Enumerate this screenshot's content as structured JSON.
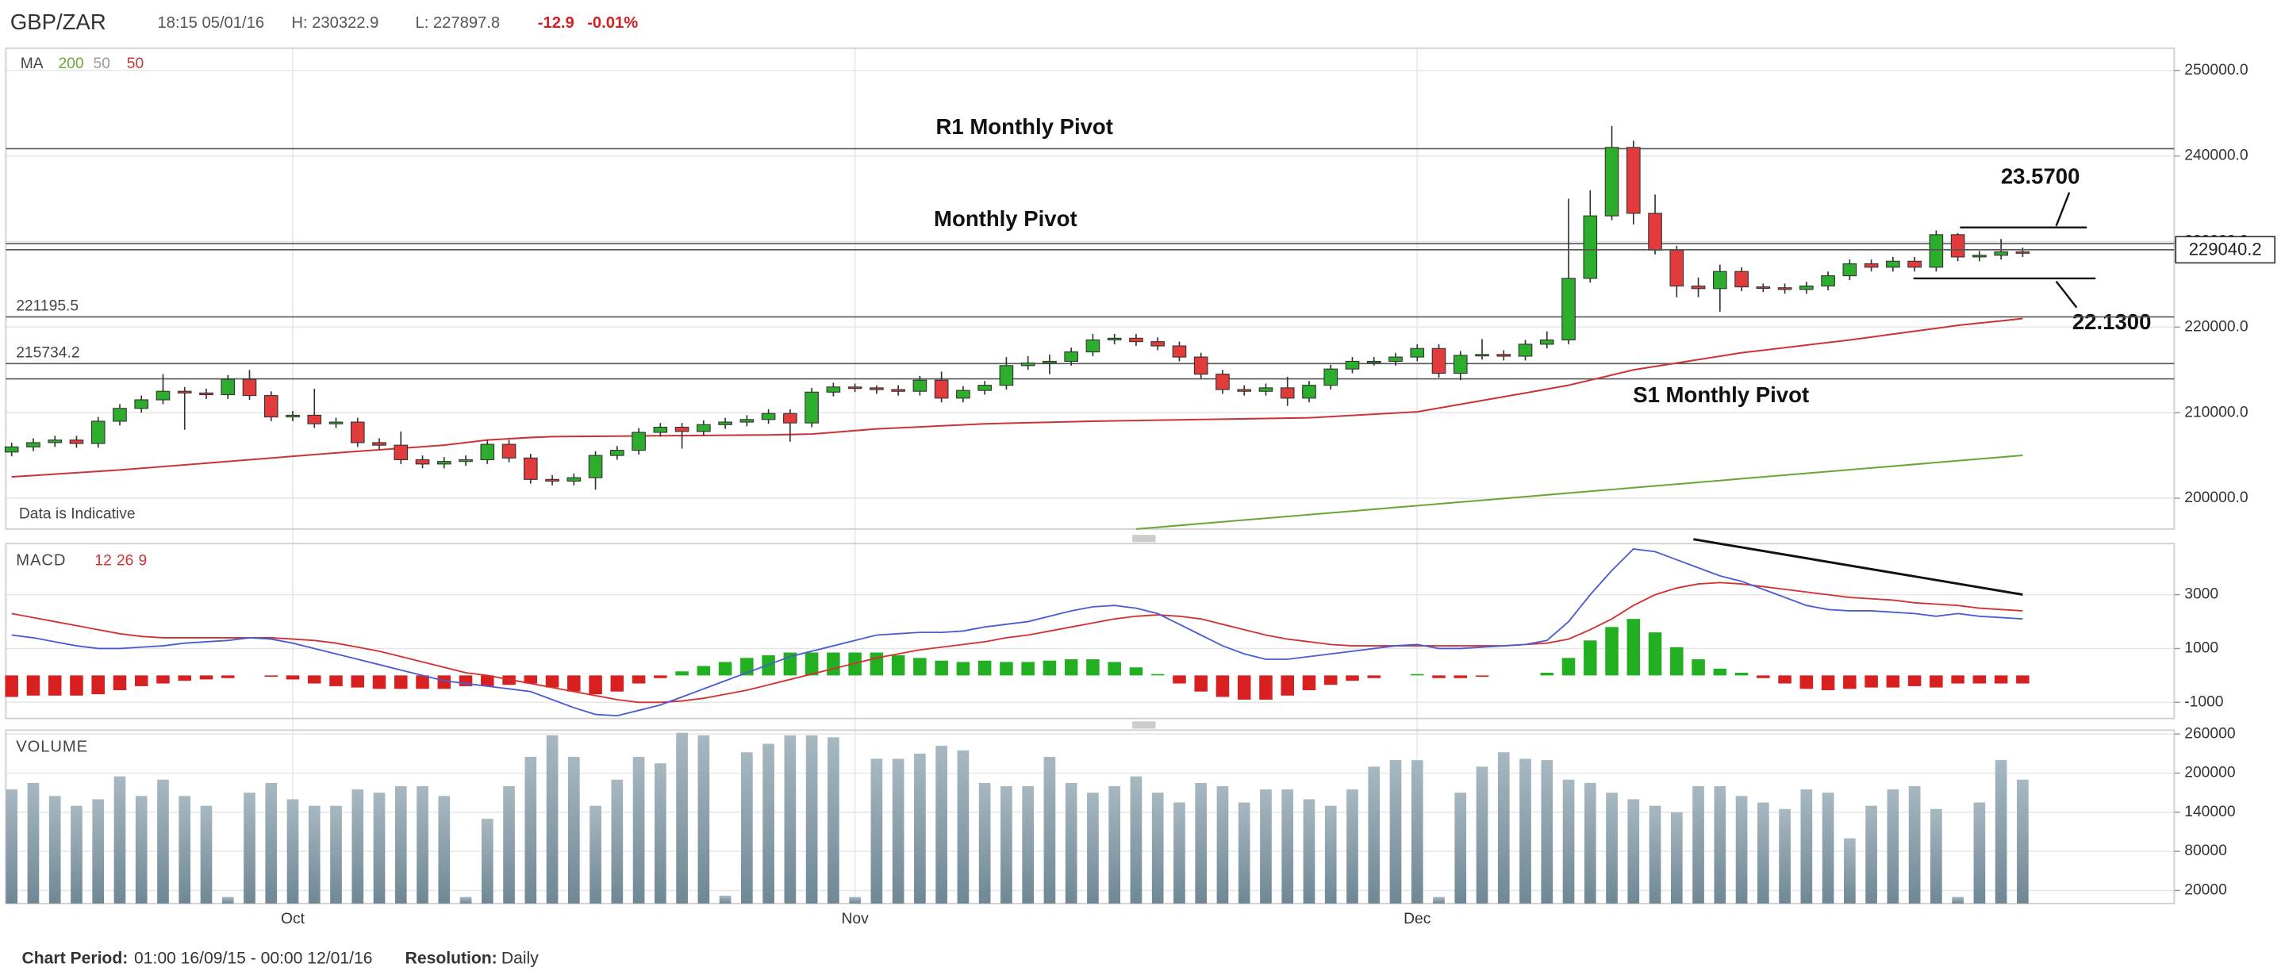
{
  "header": {
    "symbol": "GBP/ZAR",
    "time": "18:15 05/01/16",
    "high": "H: 230322.9",
    "low": "L: 227897.8",
    "change": "-12.9",
    "change_pct": "-0.01%"
  },
  "footer": {
    "period_label": "Chart Period:",
    "period": "01:00 16/09/15 - 00:00 12/01/16",
    "resolution_label": "Resolution:",
    "resolution": "Daily"
  },
  "chart_data": [
    {
      "type": "candlestick",
      "legend_title": "MA",
      "legend_extra": {
        "name": "50",
        "color": "#9a9a9a"
      },
      "note": "Data is Indicative",
      "categories": [
        null,
        null,
        null,
        null,
        null,
        null,
        null,
        null,
        null,
        null,
        null,
        null,
        null,
        "Oct",
        null,
        null,
        null,
        null,
        null,
        null,
        null,
        null,
        null,
        null,
        null,
        null,
        null,
        null,
        null,
        null,
        null,
        null,
        null,
        null,
        null,
        null,
        null,
        null,
        null,
        "Nov",
        null,
        null,
        null,
        null,
        null,
        null,
        null,
        null,
        null,
        null,
        null,
        null,
        null,
        null,
        null,
        null,
        null,
        null,
        null,
        null,
        null,
        null,
        null,
        null,
        null,
        "Dec",
        null,
        null,
        null,
        null,
        null,
        null,
        null,
        null,
        null,
        null,
        null,
        null,
        null,
        null,
        null,
        null,
        null,
        null,
        null,
        null,
        null,
        null,
        null,
        null,
        null,
        null,
        null,
        null
      ],
      "open": [
        205400,
        206000,
        206500,
        206800,
        206400,
        209000,
        210500,
        211500,
        212500,
        212300,
        212100,
        213900,
        212000,
        209500,
        209700,
        208700,
        208900,
        206500,
        206200,
        204500,
        204000,
        204300,
        204500,
        206300,
        204700,
        202200,
        202000,
        202400,
        205000,
        205600,
        207700,
        208300,
        207800,
        208600,
        208900,
        209200,
        209900,
        208800,
        212400,
        213000,
        212900,
        212700,
        212500,
        213800,
        211700,
        212600,
        213200,
        215500,
        215800,
        216000,
        217100,
        218500,
        218700,
        218300,
        217800,
        216500,
        214500,
        212700,
        212500,
        212900,
        211700,
        213200,
        215100,
        216000,
        216000,
        216500,
        217500,
        214600,
        216700,
        216800,
        216600,
        218000,
        218500,
        225700,
        233000,
        241000,
        233300,
        229000,
        224800,
        224500,
        226500,
        224700,
        224600,
        224400,
        224800,
        226000,
        227400,
        227000,
        227700,
        227000,
        230800,
        228200,
        228400,
        228800
      ],
      "high": [
        206500,
        207000,
        207300,
        207300,
        209500,
        211000,
        212000,
        214500,
        213000,
        212800,
        214400,
        215000,
        212500,
        210200,
        212800,
        209400,
        209400,
        207000,
        207800,
        205000,
        204800,
        205000,
        206800,
        206800,
        205200,
        202700,
        202900,
        205500,
        206100,
        208200,
        208800,
        208800,
        209100,
        209400,
        209700,
        210400,
        210400,
        212900,
        213500,
        213400,
        213200,
        213200,
        214300,
        214800,
        213100,
        213700,
        216500,
        216600,
        216800,
        217600,
        219200,
        219200,
        219200,
        218800,
        218300,
        217000,
        215000,
        213200,
        213400,
        214200,
        213700,
        215600,
        216500,
        216500,
        217000,
        218000,
        218000,
        217200,
        218600,
        217300,
        218500,
        219500,
        235000,
        236000,
        243500,
        241800,
        235500,
        229500,
        225800,
        227300,
        227000,
        225100,
        225100,
        225300,
        226500,
        227900,
        227900,
        228200,
        228200,
        231300,
        231000,
        228900,
        230300,
        229300
      ],
      "low": [
        204900,
        205500,
        206000,
        205900,
        205900,
        208500,
        210000,
        211000,
        208000,
        211600,
        211600,
        211500,
        209000,
        209000,
        208200,
        208200,
        206000,
        205700,
        204000,
        203500,
        203500,
        203800,
        204000,
        204200,
        201700,
        201500,
        201500,
        201000,
        204500,
        205100,
        207200,
        205800,
        207300,
        208100,
        208400,
        208700,
        206600,
        208300,
        211900,
        212400,
        212200,
        212000,
        212000,
        211200,
        211200,
        212100,
        212700,
        215000,
        214500,
        215500,
        216600,
        218000,
        217800,
        217300,
        216000,
        214000,
        212200,
        212000,
        212000,
        210800,
        211200,
        212700,
        214600,
        215500,
        215500,
        216000,
        214100,
        213800,
        216200,
        216100,
        216100,
        217500,
        218000,
        225200,
        232500,
        232000,
        228500,
        223500,
        223500,
        221800,
        224200,
        224100,
        223900,
        223900,
        224300,
        225500,
        226500,
        226500,
        226500,
        226500,
        227700,
        227700,
        227900,
        228200
      ],
      "close": [
        206000,
        206500,
        206800,
        206400,
        209000,
        210500,
        211500,
        212500,
        212300,
        212100,
        213900,
        212000,
        209500,
        209700,
        208700,
        208900,
        206500,
        206200,
        204500,
        204000,
        204300,
        204500,
        206300,
        204700,
        202200,
        202000,
        202400,
        205000,
        205600,
        207700,
        208300,
        207800,
        208600,
        208900,
        209200,
        209900,
        208800,
        212400,
        213000,
        212900,
        212700,
        212500,
        213800,
        211700,
        212600,
        213200,
        215500,
        215800,
        216000,
        217100,
        218500,
        218700,
        218300,
        217800,
        216500,
        214500,
        212700,
        212500,
        212900,
        211700,
        213200,
        215100,
        216000,
        216000,
        216500,
        217500,
        214600,
        216700,
        216800,
        216600,
        218000,
        218500,
        225700,
        233000,
        241000,
        233300,
        229000,
        224800,
        224500,
        226500,
        224700,
        224600,
        224400,
        224800,
        226000,
        227400,
        227000,
        227700,
        227000,
        230800,
        228200,
        228400,
        228800,
        228700
      ],
      "up_color": "#2cad2c",
      "down_color": "#e23b3b",
      "series": [
        {
          "name": "200",
          "color": "#6aa536",
          "values": [
            null,
            null,
            null,
            null,
            null,
            null,
            null,
            null,
            null,
            null,
            null,
            null,
            null,
            null,
            null,
            null,
            null,
            null,
            null,
            null,
            null,
            null,
            null,
            null,
            null,
            null,
            null,
            null,
            null,
            null,
            null,
            null,
            null,
            null,
            null,
            null,
            null,
            null,
            null,
            null,
            null,
            null,
            null,
            null,
            null,
            null,
            null,
            null,
            null,
            null,
            null,
            null,
            196400,
            196610,
            196820,
            197030,
            197240,
            197450,
            197660,
            197870,
            198080,
            198290,
            198500,
            198710,
            198920,
            199130,
            199340,
            199550,
            199760,
            199970,
            200180,
            200390,
            200600,
            200810,
            201020,
            201230,
            201440,
            201650,
            201860,
            202070,
            202280,
            202490,
            202700,
            202910,
            203120,
            203330,
            203540,
            203750,
            203960,
            204170,
            204380,
            204590,
            204800,
            205010
          ]
        },
        {
          "name": "50",
          "color": "#cc3333",
          "values": [
            202500,
            202660,
            202820,
            202980,
            203140,
            203300,
            203500,
            203700,
            203900,
            204100,
            204300,
            204500,
            204700,
            204900,
            205100,
            205300,
            205480,
            205660,
            205840,
            206020,
            206200,
            206500,
            206800,
            206950,
            207100,
            207200,
            207220,
            207240,
            207260,
            207280,
            207300,
            207320,
            207340,
            207360,
            207380,
            207400,
            207450,
            207500,
            207700,
            207900,
            208100,
            208220,
            208340,
            208460,
            208580,
            208700,
            208760,
            208820,
            208880,
            208940,
            209000,
            209040,
            209080,
            209120,
            209160,
            209200,
            209240,
            209280,
            209320,
            209360,
            209400,
            209540,
            209680,
            209820,
            209960,
            210100,
            210540,
            210980,
            211420,
            211860,
            212300,
            212750,
            213200,
            213800,
            214400,
            215000,
            215400,
            215800,
            216200,
            216600,
            217000,
            217300,
            217600,
            217900,
            218200,
            218500,
            218840,
            219180,
            219520,
            219860,
            220200,
            220470,
            220730,
            221000
          ]
        }
      ],
      "levels": [
        {
          "label": "R1 Monthly Pivot",
          "value": 240850
        },
        {
          "label": "Monthly Pivot",
          "value": 229760
        },
        {
          "label": "S1 Monthly Pivot",
          "value": 213950
        }
      ],
      "price_lines": [
        221195.5,
        215734.2
      ],
      "last_price": 229040.2,
      "annotations": [
        "23.5700",
        "22.1300"
      ],
      "ylim": [
        196400,
        252600
      ],
      "yticks": [
        {
          "value": 200000,
          "label": "200000.0"
        },
        {
          "value": 210000,
          "label": "210000.0"
        },
        {
          "value": 220000,
          "label": "220000.0"
        },
        {
          "value": 230000,
          "label": "230000.0"
        },
        {
          "value": 240000,
          "label": "240000.0"
        },
        {
          "value": 250000,
          "label": "250000.0"
        }
      ],
      "grid": true
    },
    {
      "type": "macd",
      "title": "MACD",
      "params": [
        12,
        26,
        9
      ],
      "macd": [
        1500,
        1400,
        1250,
        1100,
        1000,
        1000,
        1050,
        1100,
        1200,
        1250,
        1300,
        1400,
        1350,
        1200,
        1000,
        800,
        600,
        400,
        200,
        0,
        -200,
        -300,
        -400,
        -500,
        -600,
        -900,
        -1200,
        -1450,
        -1500,
        -1300,
        -1100,
        -800,
        -500,
        -200,
        100,
        400,
        700,
        900,
        1100,
        1300,
        1500,
        1550,
        1600,
        1600,
        1650,
        1800,
        1900,
        2000,
        2200,
        2400,
        2550,
        2600,
        2500,
        2300,
        1900,
        1500,
        1100,
        800,
        600,
        600,
        700,
        800,
        900,
        1000,
        1100,
        1150,
        1000,
        1000,
        1050,
        1100,
        1150,
        1300,
        2000,
        3000,
        3900,
        4700,
        4600,
        4300,
        4000,
        3700,
        3500,
        3200,
        2900,
        2600,
        2450,
        2400,
        2400,
        2350,
        2300,
        2200,
        2300,
        2200,
        2150,
        2100
      ],
      "signal": [
        2300,
        2150,
        2000,
        1850,
        1700,
        1550,
        1450,
        1400,
        1400,
        1400,
        1400,
        1400,
        1400,
        1350,
        1300,
        1200,
        1050,
        900,
        700,
        500,
        300,
        100,
        0,
        -150,
        -300,
        -450,
        -600,
        -750,
        -900,
        -1000,
        -1000,
        -950,
        -850,
        -700,
        -550,
        -350,
        -150,
        50,
        250,
        450,
        650,
        800,
        950,
        1050,
        1150,
        1250,
        1400,
        1500,
        1650,
        1800,
        1950,
        2100,
        2200,
        2250,
        2200,
        2100,
        1900,
        1700,
        1500,
        1350,
        1250,
        1150,
        1100,
        1100,
        1100,
        1100,
        1100,
        1100,
        1100,
        1100,
        1150,
        1200,
        1350,
        1700,
        2100,
        2600,
        3000,
        3250,
        3400,
        3450,
        3400,
        3300,
        3200,
        3100,
        3000,
        2900,
        2850,
        2800,
        2700,
        2650,
        2600,
        2500,
        2450,
        2400
      ],
      "histogram": [
        -800,
        -750,
        -750,
        -750,
        -700,
        -550,
        -400,
        -300,
        -200,
        -150,
        -100,
        0,
        -50,
        -150,
        -300,
        -400,
        -450,
        -500,
        -500,
        -500,
        -500,
        -400,
        -400,
        -350,
        -300,
        -450,
        -600,
        -700,
        -600,
        -300,
        -100,
        150,
        350,
        500,
        650,
        750,
        850,
        850,
        850,
        850,
        850,
        750,
        650,
        550,
        500,
        550,
        500,
        500,
        550,
        600,
        600,
        500,
        300,
        50,
        -300,
        -600,
        -800,
        -900,
        -900,
        -750,
        -550,
        -350,
        -200,
        -100,
        0,
        50,
        -100,
        -100,
        -50,
        0,
        0,
        100,
        650,
        1300,
        1800,
        2100,
        1600,
        1050,
        600,
        250,
        100,
        -100,
        -300,
        -500,
        -550,
        -500,
        -450,
        -450,
        -400,
        -450,
        -300,
        -300,
        -300,
        -300
      ],
      "macd_color": "#4a5bd4",
      "signal_color": "#d43030",
      "up_color": "#22b022",
      "down_color": "#d92020",
      "ylim": [
        -1600,
        4900
      ],
      "yticks": [
        3000,
        1000,
        -1000
      ],
      "grid": true
    },
    {
      "type": "bar",
      "title": "VOLUME",
      "values": [
        175000,
        185000,
        165000,
        150000,
        160000,
        195000,
        165000,
        190000,
        165000,
        150000,
        10000,
        170000,
        185000,
        160000,
        150000,
        150000,
        175000,
        170000,
        180000,
        180000,
        165000,
        10000,
        130000,
        180000,
        225000,
        258000,
        225000,
        150000,
        190000,
        225000,
        215000,
        262000,
        258000,
        12000,
        232000,
        245000,
        258000,
        258000,
        255000,
        10000,
        222000,
        222000,
        230000,
        242000,
        235000,
        185000,
        180000,
        180000,
        225000,
        185000,
        170000,
        180000,
        195000,
        170000,
        155000,
        185000,
        180000,
        155000,
        175000,
        175000,
        160000,
        150000,
        175000,
        210000,
        220000,
        220000,
        10000,
        170000,
        210000,
        232000,
        222000,
        220000,
        190000,
        185000,
        170000,
        160000,
        150000,
        140000,
        180000,
        180000,
        165000,
        155000,
        145000,
        175000,
        170000,
        100000,
        150000,
        175000,
        180000,
        145000,
        10000,
        155000,
        220000,
        190000
      ],
      "color": "#6f8895",
      "ylim": [
        0,
        266000
      ],
      "yticks": [
        20000,
        80000,
        140000,
        200000,
        260000
      ],
      "grid": true
    }
  ]
}
